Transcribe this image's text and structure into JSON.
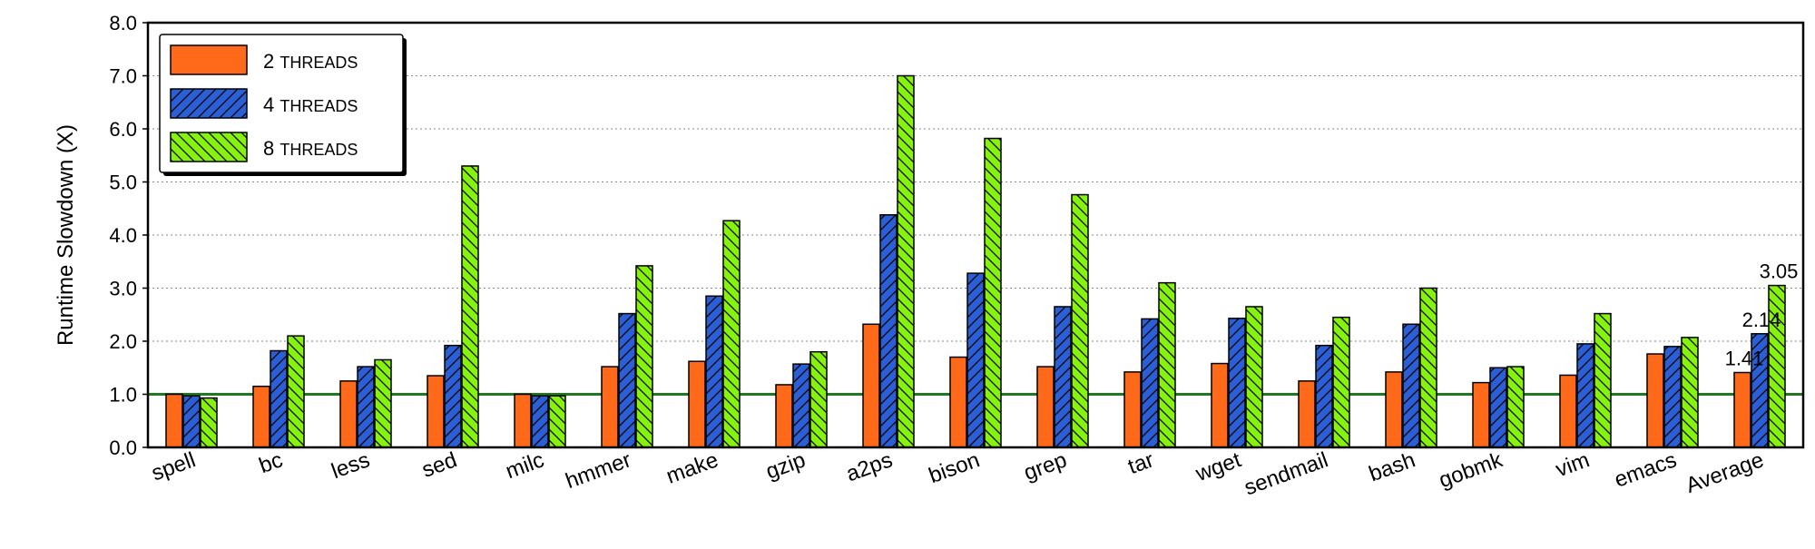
{
  "chart_data": {
    "type": "bar",
    "ylabel": "Runtime Slowdown (X)",
    "ylim": [
      0,
      8
    ],
    "yticks": [
      "0.0",
      "1.0",
      "2.0",
      "3.0",
      "4.0",
      "5.0",
      "6.0",
      "7.0",
      "8.0"
    ],
    "grid": "horizontal dotted",
    "legend_position": "top-left",
    "reference_line": {
      "y": 1.0,
      "color": "#1f7a1f"
    },
    "categories": [
      "spell",
      "bc",
      "less",
      "sed",
      "milc",
      "hmmer",
      "make",
      "gzip",
      "a2ps",
      "bison",
      "grep",
      "tar",
      "wget",
      "sendmail",
      "bash",
      "gobmk",
      "vim",
      "emacs",
      "Average"
    ],
    "series": [
      {
        "name": "2 THREADS",
        "color": "#ff6a1a",
        "pattern": "solid",
        "values": [
          1.0,
          1.15,
          1.25,
          1.35,
          1.0,
          1.52,
          1.62,
          1.18,
          2.32,
          1.7,
          1.52,
          1.42,
          1.58,
          1.25,
          1.42,
          1.22,
          1.36,
          1.76,
          1.41
        ]
      },
      {
        "name": "4 THREADS",
        "color": "#2a5fd6",
        "pattern": "forward-hatch",
        "values": [
          0.97,
          1.82,
          1.52,
          1.92,
          0.97,
          2.52,
          2.85,
          1.57,
          4.38,
          3.28,
          2.65,
          2.42,
          2.43,
          1.92,
          2.32,
          1.5,
          1.95,
          1.9,
          2.14
        ]
      },
      {
        "name": "8 THREADS",
        "color": "#86f20f",
        "pattern": "back-hatch",
        "values": [
          0.93,
          2.1,
          1.65,
          5.3,
          0.97,
          3.42,
          4.27,
          1.8,
          7.0,
          5.82,
          4.76,
          3.1,
          2.65,
          2.45,
          3.0,
          1.52,
          2.52,
          2.07,
          3.05
        ]
      }
    ],
    "annotations": [
      "1.41",
      "2.14",
      "3.05"
    ]
  }
}
